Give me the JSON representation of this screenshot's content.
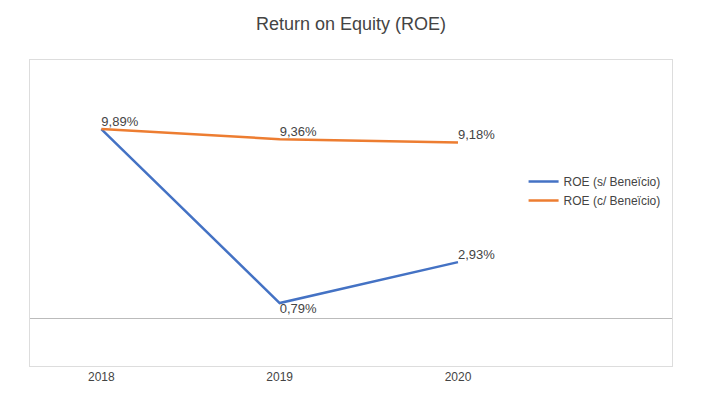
{
  "chart_data": {
    "type": "line",
    "title": "Return on Equity (ROE)",
    "x": [
      2018,
      2019,
      2020
    ],
    "series": [
      {
        "name": "ROE (s/ Beneïcio)",
        "color": "#4472C4",
        "values": [
          9.89,
          0.79,
          2.93
        ],
        "value_labels": [
          "9,89%",
          "0,79%",
          "2,93%"
        ]
      },
      {
        "name": "ROE (c/ Beneïcio)",
        "color": "#ED7D31",
        "values": [
          9.89,
          9.36,
          9.18
        ],
        "value_labels": [
          null,
          "9,36%",
          "9,18%"
        ]
      }
    ],
    "xlim": [
      2017.6,
      2021.2
    ],
    "xticks": [
      2018,
      2019,
      2020
    ],
    "ylim": [
      -2.5,
      13.5
    ],
    "tick_labels": "x",
    "grid": false,
    "legend": "right",
    "data_labels": true
  }
}
